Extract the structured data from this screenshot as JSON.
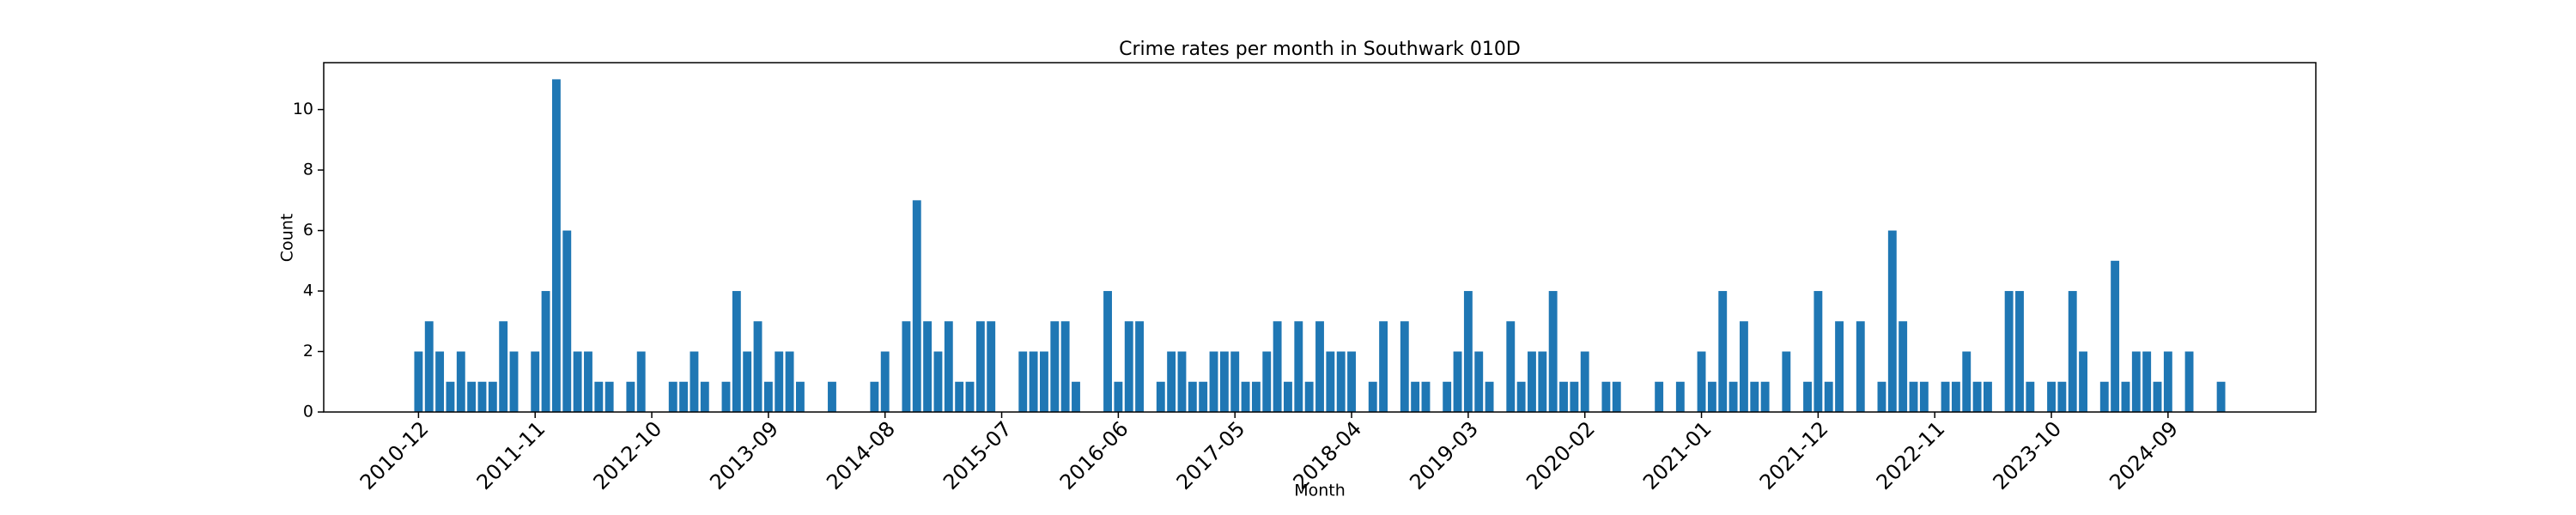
{
  "chart_data": {
    "type": "bar",
    "title": "Crime rates per month in Southwark 010D",
    "xlabel": "Month",
    "ylabel": "Count",
    "color": "#1f77b4",
    "categories": [
      "2010-12",
      null,
      null,
      null,
      null,
      null,
      null,
      null,
      null,
      null,
      null,
      "2011-11",
      null,
      null,
      null,
      null,
      null,
      null,
      null,
      null,
      null,
      null,
      "2012-10",
      null,
      null,
      null,
      null,
      null,
      null,
      null,
      null,
      null,
      null,
      "2013-09",
      null,
      null,
      null,
      null,
      null,
      null,
      null,
      null,
      null,
      null,
      "2014-08",
      null,
      null,
      null,
      null,
      null,
      null,
      null,
      null,
      null,
      null,
      "2015-07",
      null,
      null,
      null,
      null,
      null,
      null,
      null,
      null,
      null,
      null,
      "2016-06",
      null,
      null,
      null,
      null,
      null,
      null,
      null,
      null,
      null,
      null,
      "2017-05",
      null,
      null,
      null,
      null,
      null,
      null,
      null,
      null,
      null,
      null,
      "2018-04",
      null,
      null,
      null,
      null,
      null,
      null,
      null,
      null,
      null,
      null,
      "2019-03",
      null,
      null,
      null,
      null,
      null,
      null,
      null,
      null,
      null,
      null,
      "2020-02",
      null,
      null,
      null,
      null,
      null,
      null,
      null,
      null,
      null,
      null,
      "2021-01",
      null,
      null,
      null,
      null,
      null,
      null,
      null,
      null,
      null,
      null,
      "2021-12",
      null,
      null,
      null,
      null,
      null,
      null,
      null,
      null,
      null,
      null,
      "2022-11",
      null,
      null,
      null,
      null,
      null,
      null,
      null,
      null,
      null,
      null,
      "2023-10",
      null,
      null,
      null,
      null,
      null,
      null,
      null,
      null,
      null,
      null,
      "2024-09",
      null,
      null,
      null,
      null,
      null
    ],
    "values": [
      2,
      3,
      2,
      1,
      2,
      1,
      1,
      1,
      3,
      2,
      0,
      2,
      4,
      11,
      6,
      2,
      2,
      1,
      1,
      0,
      1,
      2,
      0,
      0,
      1,
      1,
      2,
      1,
      0,
      1,
      4,
      2,
      3,
      1,
      2,
      2,
      1,
      0,
      0,
      1,
      0,
      0,
      0,
      1,
      2,
      0,
      3,
      7,
      3,
      2,
      3,
      1,
      1,
      3,
      3,
      0,
      0,
      2,
      2,
      2,
      3,
      3,
      1,
      0,
      0,
      4,
      1,
      3,
      3,
      0,
      1,
      2,
      2,
      1,
      1,
      2,
      2,
      2,
      1,
      1,
      2,
      3,
      1,
      3,
      1,
      3,
      2,
      2,
      2,
      0,
      1,
      3,
      0,
      3,
      1,
      1,
      0,
      1,
      2,
      4,
      2,
      1,
      0,
      3,
      1,
      2,
      2,
      4,
      1,
      1,
      2,
      0,
      1,
      1,
      0,
      0,
      0,
      1,
      0,
      1,
      0,
      2,
      1,
      4,
      1,
      3,
      1,
      1,
      0,
      2,
      0,
      1,
      4,
      1,
      3,
      0,
      3,
      0,
      1,
      6,
      3,
      1,
      1,
      0,
      1,
      1,
      2,
      1,
      1,
      0,
      4,
      4,
      1,
      0,
      1,
      1,
      4,
      2,
      0,
      1,
      5,
      1,
      2,
      2,
      1,
      2,
      0,
      2,
      0,
      0,
      1
    ],
    "ylim": [
      0,
      11.55
    ],
    "yticks": [
      0,
      2,
      4,
      6,
      8,
      10
    ],
    "grid": false
  }
}
